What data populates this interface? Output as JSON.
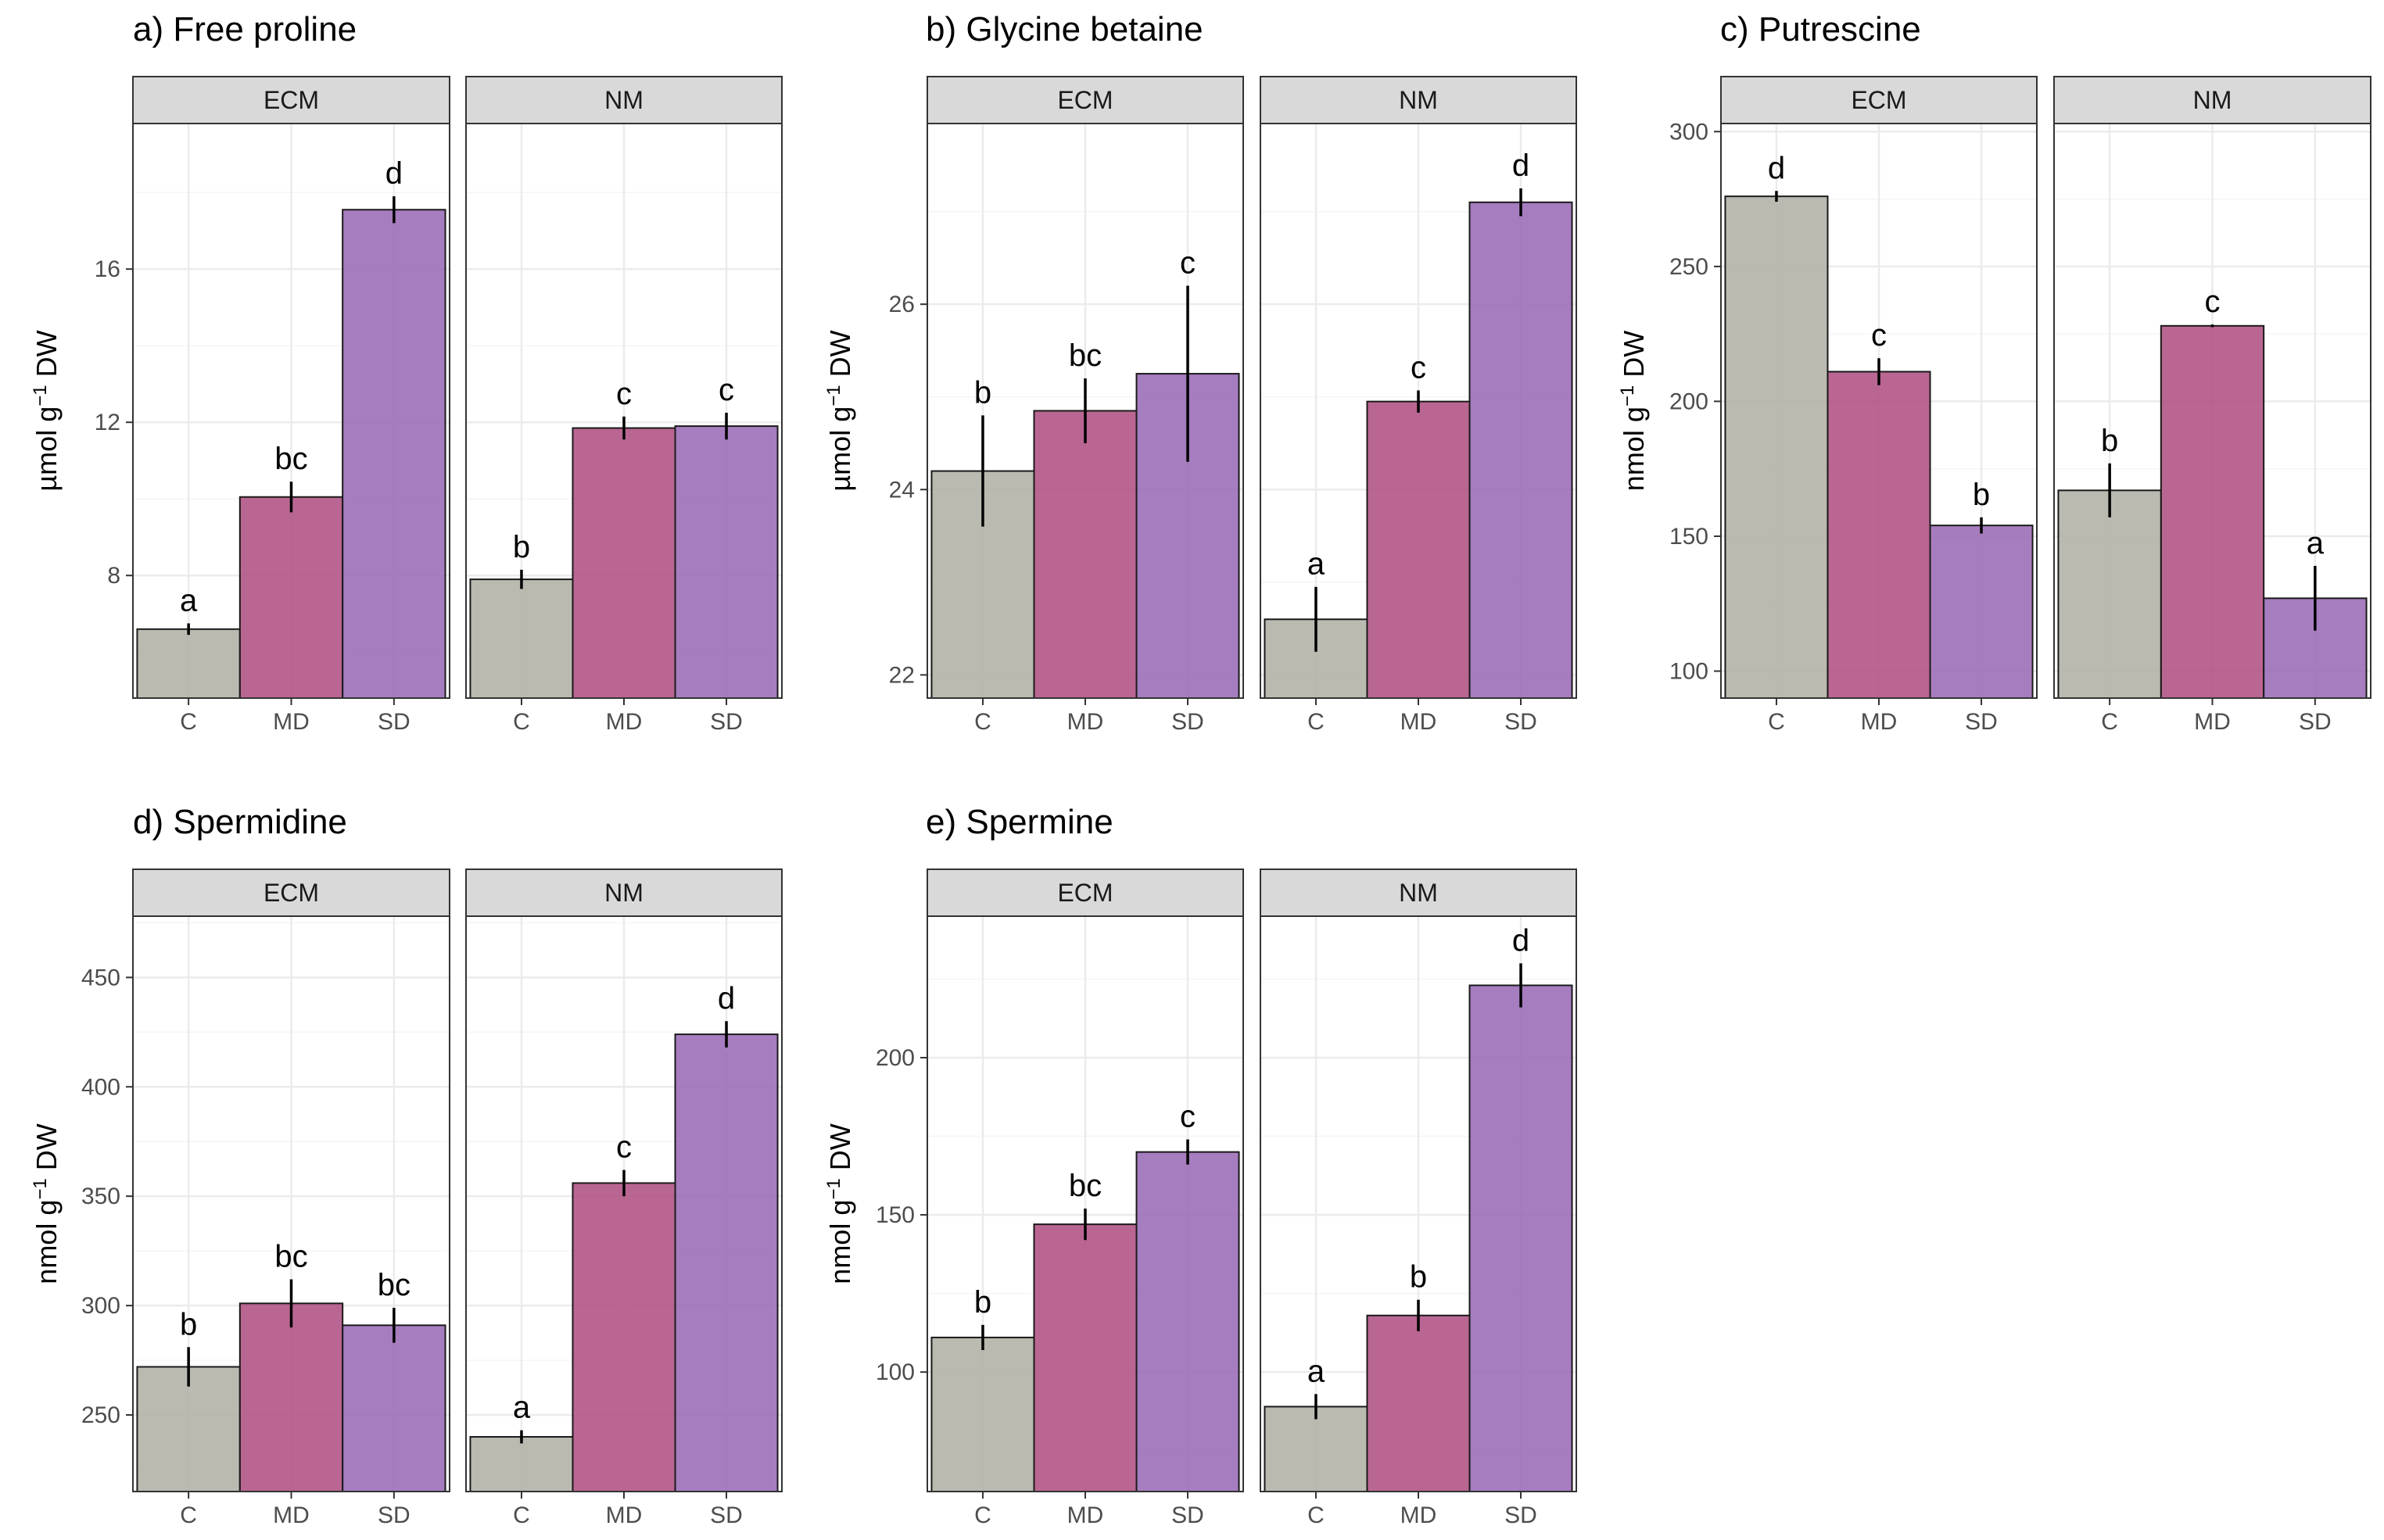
{
  "chart_data": [
    {
      "type": "bar",
      "title": "a) Free proline",
      "ylabel": {
        "pre": "µmol g",
        "sup": "−1",
        "post": " DW"
      },
      "ylim": [
        4.8,
        19.8
      ],
      "yticks": [
        8,
        12,
        16
      ],
      "facets": [
        "ECM",
        "NM"
      ],
      "categories": [
        "C",
        "MD",
        "SD"
      ],
      "series": [
        {
          "facet": "ECM",
          "values": [
            6.6,
            10.05,
            17.55
          ],
          "errors": [
            0.15,
            0.4,
            0.35
          ],
          "letters": [
            "a",
            "bc",
            "d"
          ]
        },
        {
          "facet": "NM",
          "values": [
            7.9,
            11.85,
            11.9
          ],
          "errors": [
            0.25,
            0.3,
            0.35
          ],
          "letters": [
            "b",
            "c",
            "c"
          ]
        }
      ]
    },
    {
      "type": "bar",
      "title": "b) Glycine betaine",
      "ylabel": {
        "pre": "µmol g",
        "sup": "−1",
        "post": " DW"
      },
      "ylim": [
        21.75,
        27.95
      ],
      "yticks": [
        22,
        24,
        26
      ],
      "facets": [
        "ECM",
        "NM"
      ],
      "categories": [
        "C",
        "MD",
        "SD"
      ],
      "series": [
        {
          "facet": "ECM",
          "values": [
            24.2,
            24.85,
            25.25
          ],
          "errors": [
            0.6,
            0.35,
            0.95
          ],
          "letters": [
            "b",
            "bc",
            "c"
          ]
        },
        {
          "facet": "NM",
          "values": [
            22.6,
            24.95,
            27.1
          ],
          "errors": [
            0.35,
            0.12,
            0.15
          ],
          "letters": [
            "a",
            "c",
            "d"
          ]
        }
      ]
    },
    {
      "type": "bar",
      "title": "c) Putrescine",
      "ylabel": {
        "pre": "nmol g",
        "sup": "−1",
        "post": " DW"
      },
      "ylim": [
        90,
        303
      ],
      "yticks": [
        100,
        150,
        200,
        250,
        300
      ],
      "facets": [
        "ECM",
        "NM"
      ],
      "categories": [
        "C",
        "MD",
        "SD"
      ],
      "series": [
        {
          "facet": "ECM",
          "values": [
            276,
            211,
            154
          ],
          "errors": [
            2,
            5,
            3
          ],
          "letters": [
            "d",
            "c",
            "b"
          ]
        },
        {
          "facet": "NM",
          "values": [
            167,
            228,
            127
          ],
          "errors": [
            10,
            0.5,
            12
          ],
          "letters": [
            "b",
            "c",
            "a"
          ]
        }
      ]
    },
    {
      "type": "bar",
      "title": "d) Spermidine",
      "ylabel": {
        "pre": "nmol g",
        "sup": "−1",
        "post": " DW"
      },
      "ylim": [
        215,
        478
      ],
      "yticks": [
        250,
        300,
        350,
        400,
        450
      ],
      "facets": [
        "ECM",
        "NM"
      ],
      "categories": [
        "C",
        "MD",
        "SD"
      ],
      "series": [
        {
          "facet": "ECM",
          "values": [
            272,
            301,
            291
          ],
          "errors": [
            9,
            11,
            8
          ],
          "letters": [
            "b",
            "bc",
            "bc"
          ]
        },
        {
          "facet": "NM",
          "values": [
            240,
            356,
            424
          ],
          "errors": [
            3,
            6,
            6
          ],
          "letters": [
            "a",
            "c",
            "d"
          ]
        }
      ]
    },
    {
      "type": "bar",
      "title": "e) Spermine",
      "ylabel": {
        "pre": "nmol g",
        "sup": "−1",
        "post": " DW"
      },
      "ylim": [
        62,
        245
      ],
      "yticks": [
        100,
        150,
        200
      ],
      "facets": [
        "ECM",
        "NM"
      ],
      "categories": [
        "C",
        "MD",
        "SD"
      ],
      "series": [
        {
          "facet": "ECM",
          "values": [
            111,
            147,
            170
          ],
          "errors": [
            4,
            5,
            4
          ],
          "letters": [
            "b",
            "bc",
            "c"
          ]
        },
        {
          "facet": "NM",
          "values": [
            89,
            118,
            223
          ],
          "errors": [
            4,
            5,
            7
          ],
          "letters": [
            "a",
            "b",
            "d"
          ]
        }
      ]
    }
  ],
  "colors": {
    "categories": [
      "#b3b3a8",
      "#b35586",
      "#9c6fb8"
    ],
    "bar_stroke": "#1a1a1a",
    "strip_fill": "#d9d9d9",
    "strip_border": "#333333",
    "panel_border": "#333333",
    "grid_major": "#ebebeb",
    "grid_minor": "#f5f5f5",
    "tick_text": "#4d4d4d"
  }
}
